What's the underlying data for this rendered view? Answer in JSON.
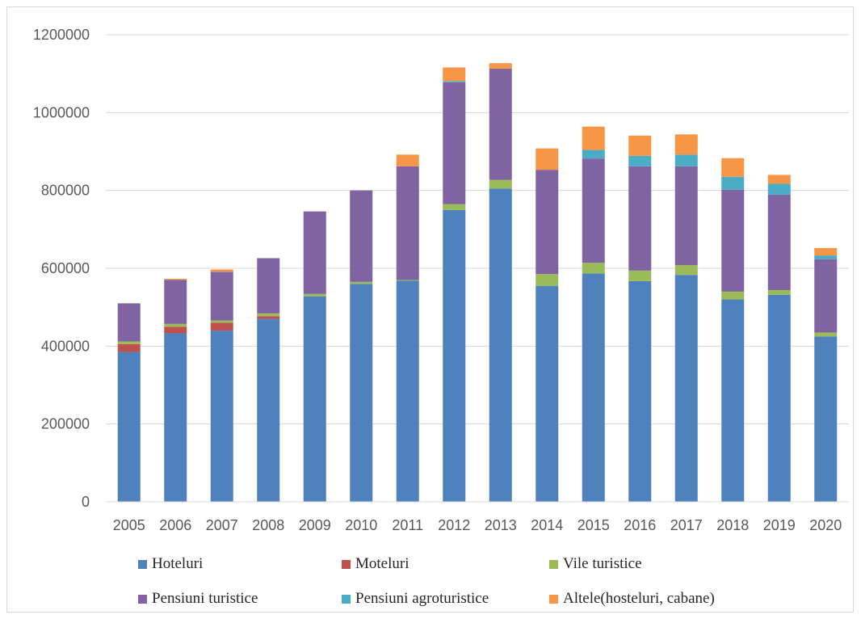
{
  "chart_data": {
    "type": "bar",
    "stacked": true,
    "title": "",
    "xlabel": "",
    "ylabel": "",
    "ylim": [
      0,
      1200000
    ],
    "yticks": [
      0,
      200000,
      400000,
      600000,
      800000,
      1000000,
      1200000
    ],
    "grid": true,
    "legend_position": "bottom",
    "categories": [
      "2005",
      "2006",
      "2007",
      "2008",
      "2009",
      "2010",
      "2011",
      "2012",
      "2013",
      "2014",
      "2015",
      "2016",
      "2017",
      "2018",
      "2019",
      "2020"
    ],
    "series": [
      {
        "name": "Hoteluri",
        "color": "#4f81bd",
        "values": [
          385000,
          433000,
          440000,
          470000,
          528000,
          560000,
          568000,
          750000,
          805000,
          555000,
          587000,
          567000,
          583000,
          520000,
          532000,
          425000
        ]
      },
      {
        "name": "Moteluri",
        "color": "#c0504d",
        "values": [
          20000,
          17000,
          20000,
          7000,
          0,
          0,
          0,
          0,
          0,
          0,
          0,
          0,
          0,
          0,
          0,
          0
        ]
      },
      {
        "name": "Vile turistice",
        "color": "#9bbb59",
        "values": [
          7000,
          7000,
          6000,
          7000,
          6000,
          5000,
          2000,
          15000,
          22000,
          30000,
          27000,
          27000,
          25000,
          20000,
          12000,
          10000
        ]
      },
      {
        "name": "Pensiuni turistice",
        "color": "#8064a2",
        "values": [
          98000,
          113000,
          125000,
          142000,
          212000,
          235000,
          292000,
          313000,
          286000,
          268000,
          268000,
          268000,
          254000,
          262000,
          245000,
          188000
        ]
      },
      {
        "name": "Pensiuni agroturistice",
        "color": "#4bacc6",
        "values": [
          0,
          0,
          0,
          0,
          0,
          0,
          0,
          3000,
          0,
          0,
          22000,
          27000,
          30000,
          33000,
          28000,
          10000
        ]
      },
      {
        "name": "Altele(hosteluri, cabane)",
        "color": "#f79646",
        "values": [
          0,
          3000,
          6000,
          0,
          0,
          0,
          30000,
          35000,
          14000,
          55000,
          60000,
          52000,
          52000,
          48000,
          23000,
          19000
        ]
      }
    ]
  }
}
